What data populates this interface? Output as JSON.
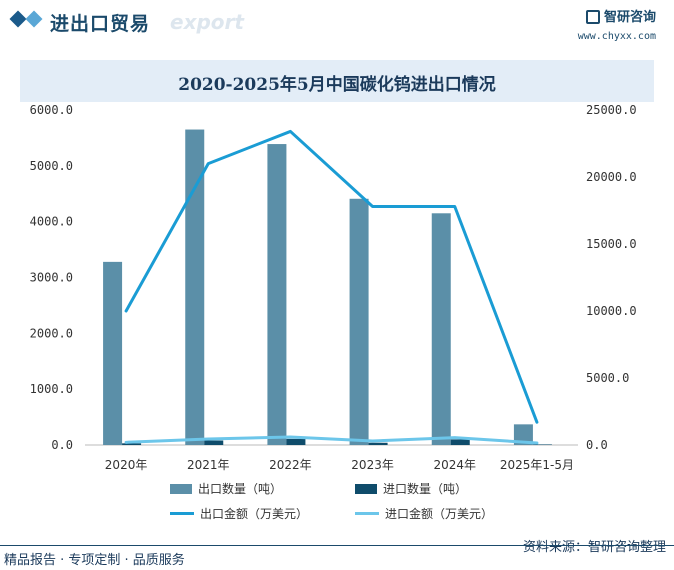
{
  "header": {
    "title": "进出口贸易",
    "watermark": "export",
    "brand_name": "智研咨询",
    "brand_url": "www.chyxx.com"
  },
  "colors": {
    "export_qty": "#5b8fa8",
    "import_qty": "#0f4c6b",
    "export_amt": "#1a9cd4",
    "import_amt": "#6cc6ea",
    "title_band": "#e3edf7",
    "header_text": "#1b4a6b"
  },
  "chart_data": {
    "type": "bar",
    "title": "2020-2025年5月中国碳化钨进出口情况",
    "categories": [
      "2020年",
      "2021年",
      "2022年",
      "2023年",
      "2024年",
      "2025年1-5月"
    ],
    "y_left": {
      "ylim": [
        0,
        6000
      ],
      "ticks": [
        "0.0",
        "1000.0",
        "2000.0",
        "3000.0",
        "4000.0",
        "5000.0",
        "6000.0"
      ]
    },
    "y_right": {
      "ylim": [
        0,
        25000
      ],
      "ticks": [
        "0.0",
        "5000.0",
        "10000.0",
        "15000.0",
        "20000.0",
        "25000.0"
      ]
    },
    "series": [
      {
        "name": "出口数量（吨）",
        "kind": "bar",
        "axis": "left",
        "values": [
          3280,
          5650,
          5390,
          4410,
          4150,
          370
        ]
      },
      {
        "name": "进口数量（吨）",
        "kind": "bar",
        "axis": "left",
        "values": [
          30,
          80,
          110,
          40,
          100,
          10
        ]
      },
      {
        "name": "出口金额（万美元）",
        "kind": "line",
        "axis": "right",
        "values": [
          10000,
          21000,
          23400,
          17800,
          17800,
          1700
        ]
      },
      {
        "name": "进口金额（万美元）",
        "kind": "line",
        "axis": "right",
        "values": [
          200,
          450,
          600,
          300,
          550,
          150
        ]
      }
    ],
    "legend_position": "bottom",
    "grid": false
  },
  "footer": {
    "left": "精品报告 · 专项定制 · 品质服务",
    "right": "资料来源：智研咨询整理"
  }
}
